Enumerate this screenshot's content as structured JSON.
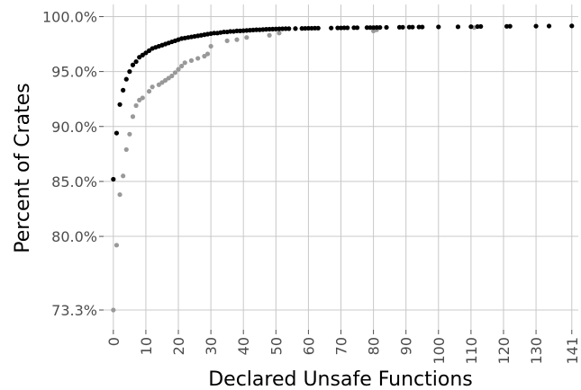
{
  "chart_data": {
    "type": "scatter",
    "xlabel": "Declared Unsafe Functions",
    "ylabel": "Percent of Crates",
    "x_ticks": [
      0,
      10,
      20,
      30,
      40,
      50,
      60,
      70,
      80,
      90,
      100,
      110,
      120,
      130,
      141
    ],
    "x_tick_labels": [
      "0",
      "10",
      "20",
      "30",
      "40",
      "50",
      "60",
      "70",
      "80",
      "90",
      "100",
      "110",
      "120",
      "130",
      "141"
    ],
    "y_ticks": [
      73.3,
      80.0,
      85.0,
      90.0,
      95.0,
      100.0
    ],
    "y_tick_labels": [
      "73.3%",
      "80.0%",
      "85.0%",
      "90.0%",
      "95.0%",
      "100.0%"
    ],
    "xlim": [
      -3,
      143
    ],
    "ylim": [
      71.5,
      101.1
    ],
    "grid": true,
    "series": [
      {
        "color": "#000000",
        "points": [
          [
            0,
            85.2
          ],
          [
            1,
            89.4
          ],
          [
            2,
            92.0
          ],
          [
            3,
            93.3
          ],
          [
            4,
            94.3
          ],
          [
            5,
            95.0
          ],
          [
            6,
            95.6
          ],
          [
            7,
            95.9
          ],
          [
            8,
            96.3
          ],
          [
            9,
            96.5
          ],
          [
            10,
            96.7
          ],
          [
            11,
            96.9
          ],
          [
            12,
            97.1
          ],
          [
            13,
            97.2
          ],
          [
            14,
            97.3
          ],
          [
            15,
            97.4
          ],
          [
            16,
            97.5
          ],
          [
            17,
            97.6
          ],
          [
            18,
            97.7
          ],
          [
            19,
            97.8
          ],
          [
            20,
            97.9
          ],
          [
            21,
            98.0
          ],
          [
            22,
            98.05
          ],
          [
            23,
            98.1
          ],
          [
            24,
            98.15
          ],
          [
            25,
            98.2
          ],
          [
            26,
            98.25
          ],
          [
            27,
            98.3
          ],
          [
            28,
            98.35
          ],
          [
            29,
            98.4
          ],
          [
            30,
            98.45
          ],
          [
            31,
            98.5
          ],
          [
            32,
            98.5
          ],
          [
            33,
            98.55
          ],
          [
            34,
            98.6
          ],
          [
            35,
            98.6
          ],
          [
            36,
            98.65
          ],
          [
            37,
            98.65
          ],
          [
            38,
            98.7
          ],
          [
            39,
            98.7
          ],
          [
            40,
            98.72
          ],
          [
            41,
            98.74
          ],
          [
            42,
            98.76
          ],
          [
            43,
            98.78
          ],
          [
            44,
            98.8
          ],
          [
            45,
            98.8
          ],
          [
            46,
            98.82
          ],
          [
            47,
            98.84
          ],
          [
            48,
            98.85
          ],
          [
            49,
            98.86
          ],
          [
            50,
            98.87
          ],
          [
            51,
            98.88
          ],
          [
            52,
            98.89
          ],
          [
            53,
            98.9
          ],
          [
            54,
            98.9
          ],
          [
            56,
            98.91
          ],
          [
            58,
            98.92
          ],
          [
            59,
            98.93
          ],
          [
            60,
            98.94
          ],
          [
            61,
            98.94
          ],
          [
            62,
            98.95
          ],
          [
            63,
            98.95
          ],
          [
            67,
            98.96
          ],
          [
            69,
            98.97
          ],
          [
            70,
            98.97
          ],
          [
            71,
            98.98
          ],
          [
            72,
            98.98
          ],
          [
            74,
            98.99
          ],
          [
            75,
            98.99
          ],
          [
            78,
            99.0
          ],
          [
            79,
            99.0
          ],
          [
            80,
            99.0
          ],
          [
            81,
            99.01
          ],
          [
            82,
            99.01
          ],
          [
            84,
            99.02
          ],
          [
            88,
            99.03
          ],
          [
            89,
            99.03
          ],
          [
            91,
            99.04
          ],
          [
            92,
            99.04
          ],
          [
            94,
            99.05
          ],
          [
            95,
            99.05
          ],
          [
            100,
            99.06
          ],
          [
            106,
            99.07
          ],
          [
            110,
            99.08
          ],
          [
            112,
            99.09
          ],
          [
            113,
            99.1
          ],
          [
            121,
            99.11
          ],
          [
            122,
            99.12
          ],
          [
            130,
            99.13
          ],
          [
            134,
            99.14
          ],
          [
            141,
            99.15
          ]
        ]
      },
      {
        "color": "#999999",
        "points": [
          [
            0,
            73.3
          ],
          [
            1,
            79.2
          ],
          [
            2,
            83.8
          ],
          [
            3,
            85.5
          ],
          [
            4,
            87.9
          ],
          [
            5,
            89.3
          ],
          [
            6,
            90.9
          ],
          [
            7,
            91.9
          ],
          [
            8,
            92.4
          ],
          [
            9,
            92.6
          ],
          [
            11,
            93.2
          ],
          [
            12,
            93.6
          ],
          [
            14,
            93.8
          ],
          [
            15,
            94.0
          ],
          [
            16,
            94.2
          ],
          [
            17,
            94.4
          ],
          [
            18,
            94.6
          ],
          [
            19,
            94.9
          ],
          [
            20,
            95.2
          ],
          [
            21,
            95.5
          ],
          [
            22,
            95.8
          ],
          [
            24,
            96.0
          ],
          [
            26,
            96.2
          ],
          [
            28,
            96.4
          ],
          [
            29,
            96.6
          ],
          [
            30,
            97.3
          ],
          [
            35,
            97.8
          ],
          [
            38,
            97.9
          ],
          [
            41,
            98.1
          ],
          [
            48,
            98.3
          ],
          [
            51,
            98.5
          ],
          [
            80,
            98.7
          ],
          [
            81,
            98.8
          ],
          [
            111,
            99.0
          ]
        ]
      }
    ]
  }
}
